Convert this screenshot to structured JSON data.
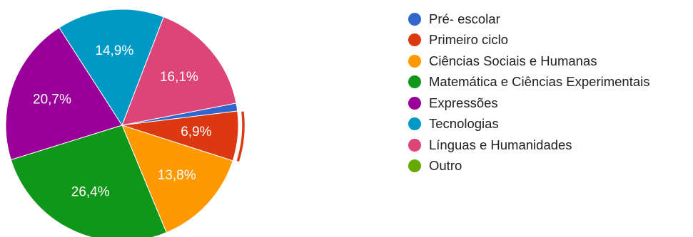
{
  "chart_data": {
    "type": "pie",
    "title": "",
    "legend_position": "right",
    "highlighted_slice": "Primeiro ciclo",
    "slices": [
      {
        "name": "Pré- escolar",
        "value": 1.1,
        "label": "",
        "color": "#3366cc"
      },
      {
        "name": "Primeiro ciclo",
        "value": 6.9,
        "label": "6,9%",
        "color": "#dc3912"
      },
      {
        "name": "Ciências Sociais e Humanas",
        "value": 13.8,
        "label": "13,8%",
        "color": "#ff9900"
      },
      {
        "name": "Matemática e Ciências Experimentais",
        "value": 26.4,
        "label": "26,4%",
        "color": "#109618"
      },
      {
        "name": "Expressões",
        "value": 20.7,
        "label": "20,7%",
        "color": "#990099"
      },
      {
        "name": "Tecnologias",
        "value": 14.9,
        "label": "14,9%",
        "color": "#0099c6"
      },
      {
        "name": "Línguas e Humanidades",
        "value": 16.1,
        "label": "16,1%",
        "color": "#dd4477"
      },
      {
        "name": "Outro",
        "value": 0,
        "label": "",
        "color": "#66aa00"
      }
    ]
  }
}
